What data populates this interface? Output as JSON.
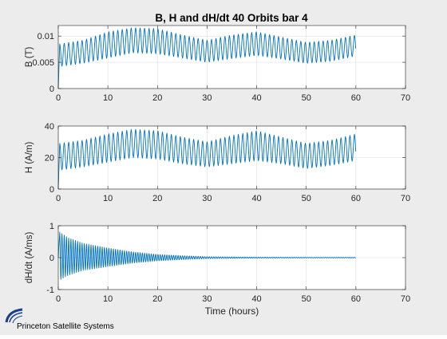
{
  "figure": {
    "title": "B, H and dH/dt 40 Orbits bar 4",
    "background": "#ececec",
    "line_color": "#0072bd",
    "logo_text": "Princeton Satellite Systems"
  },
  "chart_data": [
    {
      "type": "line",
      "title": "B, H and dH/dt 40 Orbits bar 4",
      "xlabel": "",
      "ylabel": "B (T)",
      "xlim": [
        0,
        70
      ],
      "ylim": [
        0,
        0.012
      ],
      "xticks": [
        0,
        10,
        20,
        30,
        40,
        50,
        60,
        70
      ],
      "xtick_labels": [
        "0",
        "10",
        "20",
        "30",
        "40",
        "50",
        "60",
        "70"
      ],
      "yticks": [
        0,
        0.005,
        0.01
      ],
      "ytick_labels": [
        "0",
        "0.005",
        "0.01"
      ],
      "grid": true,
      "series": [
        {
          "color": "#0072bd",
          "x_range": [
            0,
            60
          ],
          "start_value": 0,
          "oscillation_period_hours": 0.9,
          "envelope_x": [
            0.3,
            5,
            10,
            15,
            20,
            25,
            30,
            35,
            40,
            45,
            50,
            55,
            60
          ],
          "envelope_max": [
            0.0085,
            0.0092,
            0.0108,
            0.0116,
            0.0114,
            0.0102,
            0.0092,
            0.0102,
            0.0108,
            0.0098,
            0.0088,
            0.0092,
            0.0102
          ],
          "envelope_min": [
            0.0042,
            0.0048,
            0.0058,
            0.0068,
            0.0066,
            0.0058,
            0.005,
            0.0057,
            0.0063,
            0.0056,
            0.0048,
            0.0052,
            0.0062
          ]
        }
      ]
    },
    {
      "type": "line",
      "xlabel": "",
      "ylabel": "H (A/m)",
      "xlim": [
        0,
        70
      ],
      "ylim": [
        0,
        40
      ],
      "xticks": [
        0,
        10,
        20,
        30,
        40,
        50,
        60,
        70
      ],
      "xtick_labels": [
        "0",
        "10",
        "20",
        "30",
        "40",
        "50",
        "60",
        "70"
      ],
      "yticks": [
        0,
        20,
        40
      ],
      "ytick_labels": [
        "0",
        "20",
        "40"
      ],
      "grid": true,
      "series": [
        {
          "color": "#0072bd",
          "x_range": [
            0,
            60
          ],
          "start_value": 0,
          "oscillation_period_hours": 0.9,
          "envelope_x": [
            0.3,
            5,
            10,
            15,
            20,
            25,
            30,
            35,
            40,
            45,
            50,
            55,
            60
          ],
          "envelope_max": [
            29,
            31,
            35,
            38,
            37,
            33,
            30,
            34,
            37,
            33,
            29,
            31,
            35
          ],
          "envelope_min": [
            12,
            14,
            17,
            20,
            19,
            16,
            14,
            16,
            18,
            16,
            13,
            15,
            18
          ]
        }
      ]
    },
    {
      "type": "line",
      "xlabel": "Time (hours)",
      "ylabel": "dH/dt (A/ms)",
      "xlim": [
        0,
        70
      ],
      "ylim": [
        -1,
        1
      ],
      "xticks": [
        0,
        10,
        20,
        30,
        40,
        50,
        60,
        70
      ],
      "xtick_labels": [
        "0",
        "10",
        "20",
        "30",
        "40",
        "50",
        "60",
        "70"
      ],
      "yticks": [
        -1,
        0,
        1
      ],
      "ytick_labels": [
        "-1",
        "0",
        "1"
      ],
      "grid": true,
      "series": [
        {
          "color": "#0072bd",
          "x_range": [
            0,
            60
          ],
          "start_value": 0,
          "oscillation_period_hours": 0.45,
          "envelope_x": [
            0.3,
            2,
            5,
            10,
            15,
            20,
            25,
            30,
            40,
            50,
            60
          ],
          "envelope_max": [
            0.8,
            0.62,
            0.45,
            0.3,
            0.18,
            0.1,
            0.06,
            0.03,
            0.015,
            0.01,
            0.01
          ],
          "envelope_min": [
            -0.7,
            -0.55,
            -0.4,
            -0.28,
            -0.17,
            -0.1,
            -0.06,
            -0.03,
            -0.015,
            -0.01,
            -0.01
          ]
        }
      ]
    }
  ]
}
